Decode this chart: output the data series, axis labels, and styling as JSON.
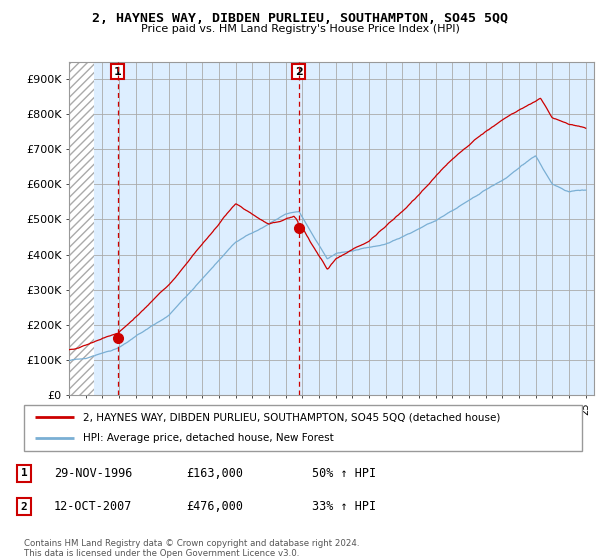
{
  "title": "2, HAYNES WAY, DIBDEN PURLIEU, SOUTHAMPTON, SO45 5QQ",
  "subtitle": "Price paid vs. HM Land Registry's House Price Index (HPI)",
  "ylabel_ticks": [
    "£0",
    "£100K",
    "£200K",
    "£300K",
    "£400K",
    "£500K",
    "£600K",
    "£700K",
    "£800K",
    "£900K"
  ],
  "ytick_values": [
    0,
    100000,
    200000,
    300000,
    400000,
    500000,
    600000,
    700000,
    800000,
    900000
  ],
  "ylim": [
    0,
    950000
  ],
  "xlim_start": 1994.0,
  "xlim_end": 2025.5,
  "sale1": {
    "date_num": 1996.92,
    "price": 163000,
    "label": "1"
  },
  "sale2": {
    "date_num": 2007.79,
    "price": 476000,
    "label": "2"
  },
  "legend_line1": "2, HAYNES WAY, DIBDEN PURLIEU, SOUTHAMPTON, SO45 5QQ (detached house)",
  "legend_line2": "HPI: Average price, detached house, New Forest",
  "table_row1": [
    "1",
    "29-NOV-1996",
    "£163,000",
    "50% ↑ HPI"
  ],
  "table_row2": [
    "2",
    "12-OCT-2007",
    "£476,000",
    "33% ↑ HPI"
  ],
  "footnote": "Contains HM Land Registry data © Crown copyright and database right 2024.\nThis data is licensed under the Open Government Licence v3.0.",
  "line_color_red": "#cc0000",
  "line_color_blue": "#7aafd4",
  "bg_plot_color": "#ddeeff",
  "hatch_color": "#bbbbbb",
  "grid_color": "#aaaaaa",
  "dashed_line_color": "#cc0000",
  "hatch_end": 1995.5
}
